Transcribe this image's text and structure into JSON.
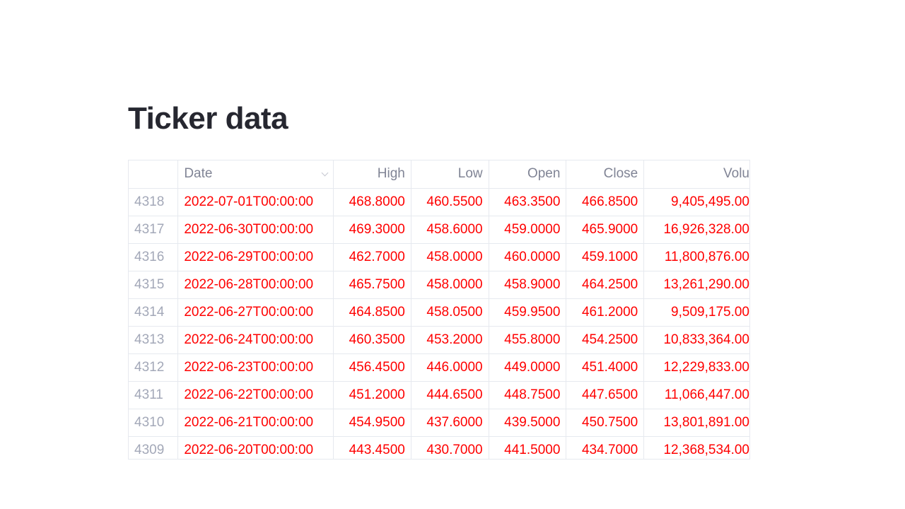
{
  "title": "Ticker data",
  "colors": {
    "value_text": "#ff0000",
    "index_text": "#a3a8b8",
    "header_text": "#808495"
  },
  "table": {
    "columns": [
      "",
      "Date",
      "High",
      "Low",
      "Open",
      "Close",
      "Volu"
    ],
    "rows": [
      [
        "4318",
        "2022-07-01T00:00:00",
        "468.8000",
        "460.5500",
        "463.3500",
        "466.8500",
        "9,405,495.00"
      ],
      [
        "4317",
        "2022-06-30T00:00:00",
        "469.3000",
        "458.6000",
        "459.0000",
        "465.9000",
        "16,926,328.00"
      ],
      [
        "4316",
        "2022-06-29T00:00:00",
        "462.7000",
        "458.0000",
        "460.0000",
        "459.1000",
        "11,800,876.00"
      ],
      [
        "4315",
        "2022-06-28T00:00:00",
        "465.7500",
        "458.0000",
        "458.9000",
        "464.2500",
        "13,261,290.00"
      ],
      [
        "4314",
        "2022-06-27T00:00:00",
        "464.8500",
        "458.0500",
        "459.9500",
        "461.2000",
        "9,509,175.00"
      ],
      [
        "4313",
        "2022-06-24T00:00:00",
        "460.3500",
        "453.2000",
        "455.8000",
        "454.2500",
        "10,833,364.00"
      ],
      [
        "4312",
        "2022-06-23T00:00:00",
        "456.4500",
        "446.0000",
        "449.0000",
        "451.4000",
        "12,229,833.00"
      ],
      [
        "4311",
        "2022-06-22T00:00:00",
        "451.2000",
        "444.6500",
        "448.7500",
        "447.6500",
        "11,066,447.00"
      ],
      [
        "4310",
        "2022-06-21T00:00:00",
        "454.9500",
        "437.6000",
        "439.5000",
        "450.7500",
        "13,801,891.00"
      ],
      [
        "4309",
        "2022-06-20T00:00:00",
        "443.4500",
        "430.7000",
        "441.5000",
        "434.7000",
        "12,368,534.00"
      ]
    ]
  }
}
